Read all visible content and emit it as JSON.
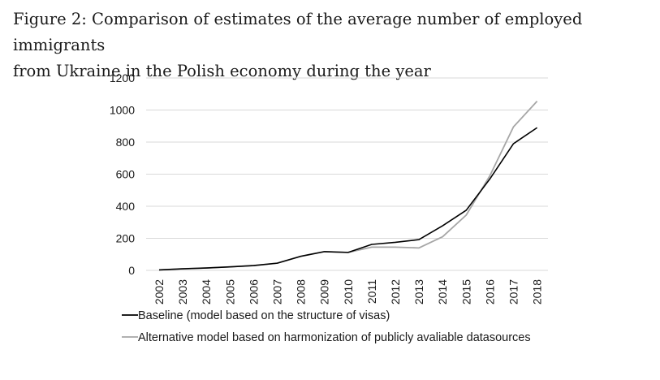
{
  "figure": {
    "caption_line1": "Figure 2: Comparison of estimates of the average number of employed immigrants",
    "caption_line2": "from Ukraine in the Polish economy during the year"
  },
  "chart_data": {
    "type": "line",
    "title": "",
    "xlabel": "",
    "ylabel": "",
    "x": [
      "2002",
      "2003",
      "2004",
      "2005",
      "2006",
      "2007",
      "2008",
      "2009",
      "2010",
      "2011",
      "2012",
      "2013",
      "2014",
      "2015",
      "2016",
      "2017",
      "2018"
    ],
    "ylim": [
      0,
      1200
    ],
    "yticks": [
      0,
      200,
      400,
      600,
      800,
      1000,
      1200
    ],
    "grid": true,
    "legend_position": "bottom",
    "series": [
      {
        "name": "Baseline (model based on the structure of visas)",
        "color": "#000000",
        "values": [
          3,
          10,
          15,
          22,
          30,
          45,
          88,
          117,
          112,
          162,
          175,
          192,
          278,
          375,
          570,
          790,
          890
        ]
      },
      {
        "name": "Alternative model based on harmonization of publicly avaliable datasources",
        "color": "#a6a6a6",
        "values": [
          3,
          10,
          15,
          22,
          30,
          45,
          88,
          117,
          112,
          145,
          145,
          140,
          210,
          345,
          590,
          895,
          1055
        ]
      }
    ]
  }
}
